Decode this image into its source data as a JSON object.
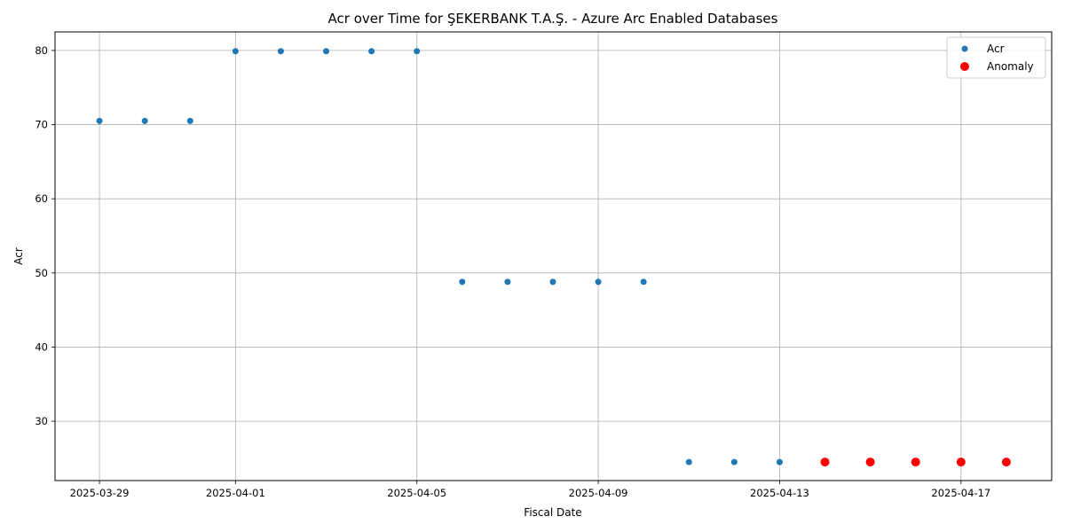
{
  "chart_data": {
    "type": "scatter",
    "title": "Acr over Time for ŞEKERBANK T.A.Ş. - Azure Arc Enabled Databases",
    "xlabel": "Fiscal Date",
    "ylabel": "Acr",
    "x_type": "date",
    "xlim": [
      "2028-03-28T11:24",
      "2025-04-18T24:00"
    ],
    "ylim": [
      22.0,
      82.5
    ],
    "xticks": [
      "2025-03-29",
      "2025-04-01",
      "2025-04-05",
      "2025-04-09",
      "2025-04-13",
      "2025-04-17"
    ],
    "yticks": [
      30,
      40,
      50,
      60,
      70,
      80
    ],
    "grid": true,
    "legend_position": "top-right",
    "series": [
      {
        "name": "Acr",
        "color": "#1f77b4",
        "points": [
          {
            "x": "2025-03-29",
            "y": 70.5
          },
          {
            "x": "2025-03-30",
            "y": 70.5
          },
          {
            "x": "2025-03-31",
            "y": 70.5
          },
          {
            "x": "2025-04-01",
            "y": 79.9
          },
          {
            "x": "2025-04-02",
            "y": 79.9
          },
          {
            "x": "2025-04-03",
            "y": 79.9
          },
          {
            "x": "2025-04-04",
            "y": 79.9
          },
          {
            "x": "2025-04-05",
            "y": 79.9
          },
          {
            "x": "2025-04-06",
            "y": 48.8
          },
          {
            "x": "2025-04-07",
            "y": 48.8
          },
          {
            "x": "2025-04-08",
            "y": 48.8
          },
          {
            "x": "2025-04-09",
            "y": 48.8
          },
          {
            "x": "2025-04-10",
            "y": 48.8
          },
          {
            "x": "2025-04-11",
            "y": 24.5
          },
          {
            "x": "2025-04-12",
            "y": 24.5
          },
          {
            "x": "2025-04-13",
            "y": 24.5
          },
          {
            "x": "2025-04-14",
            "y": 24.5
          },
          {
            "x": "2025-04-15",
            "y": 24.5
          },
          {
            "x": "2025-04-16",
            "y": 24.5
          },
          {
            "x": "2025-04-17",
            "y": 24.5
          },
          {
            "x": "2025-04-18",
            "y": 24.5
          }
        ]
      },
      {
        "name": "Anomaly",
        "color": "#ff0000",
        "points": [
          {
            "x": "2025-04-14",
            "y": 24.5
          },
          {
            "x": "2025-04-15",
            "y": 24.5
          },
          {
            "x": "2025-04-16",
            "y": 24.5
          },
          {
            "x": "2025-04-17",
            "y": 24.5
          },
          {
            "x": "2025-04-18",
            "y": 24.5
          }
        ]
      }
    ]
  }
}
